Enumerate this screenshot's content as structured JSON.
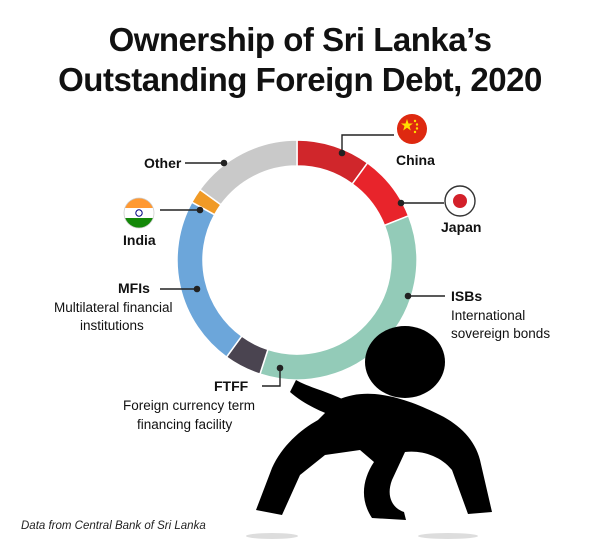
{
  "title_line1": "Ownership of Sri Lanka’s",
  "title_line2": "Outstanding Foreign Debt, 2020",
  "source": "Data from Central Bank of Sri Lanka",
  "chart_data": {
    "type": "pie",
    "title": "Ownership of Sri Lanka’s Outstanding Foreign Debt, 2020",
    "style": "donut",
    "start_angle_deg": 0,
    "direction": "clockwise",
    "slices": [
      {
        "name": "China",
        "description": "",
        "value": 10,
        "color": "#d0262b",
        "flag": "china-flag-icon"
      },
      {
        "name": "Japan",
        "description": "",
        "value": 9,
        "color": "#e8242b",
        "flag": "japan-flag-icon"
      },
      {
        "name": "ISBs",
        "description": "International sovereign bonds",
        "value": 36,
        "color": "#93cbb8"
      },
      {
        "name": "FTFF",
        "description": "Foreign currency term financing facility",
        "value": 5,
        "color": "#4a4450"
      },
      {
        "name": "MFIs",
        "description": "Multilateral financial institutions",
        "value": 23,
        "color": "#6ca6da"
      },
      {
        "name": "India",
        "description": "",
        "value": 2,
        "color": "#f09a26",
        "flag": "india-flag-icon"
      },
      {
        "name": "Other",
        "description": "",
        "value": 15,
        "color": "#c9c9c9"
      }
    ]
  }
}
